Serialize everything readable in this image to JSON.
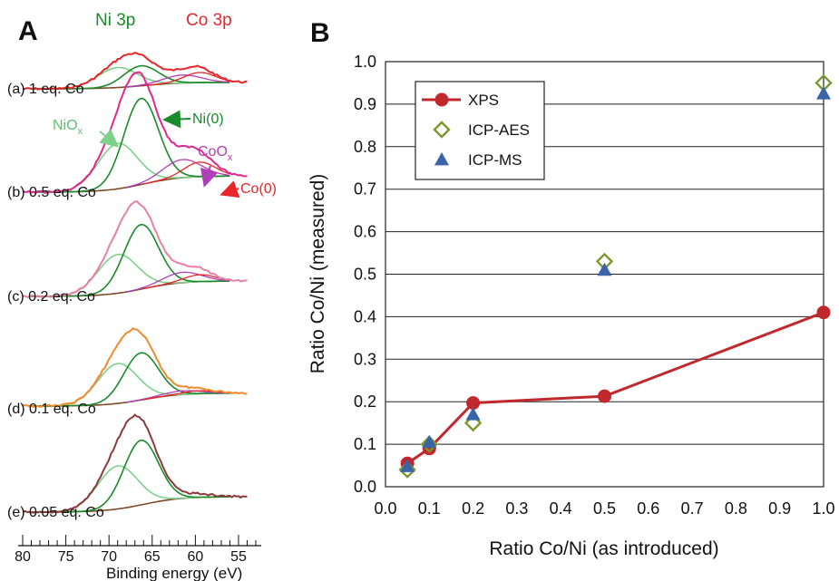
{
  "panel_a": {
    "letter": "A",
    "header_ni": "Ni 3p",
    "header_co": "Co 3p",
    "spectra": [
      {
        "label": "(a) 1 eq. Co",
        "color": "#e8262a"
      },
      {
        "label": "(b) 0.5 eq. Co",
        "color": "#e0288f"
      },
      {
        "label": "(c) 0.2 eq. Co",
        "color": "#e77fa6"
      },
      {
        "label": "(d) 0.1 eq. Co",
        "color": "#f08a2b"
      },
      {
        "label": "(e) 0.05 eq. Co",
        "color": "#8a3a3a"
      }
    ],
    "annotations": {
      "niox": "NiO",
      "niox_sub": "x",
      "ni0": "Ni(0)",
      "coox": "CoO",
      "coox_sub": "x",
      "co0": "Co(0)"
    },
    "xaxis": {
      "title": "Binding energy (eV)",
      "ticks": [
        "80",
        "75",
        "70",
        "65",
        "60",
        "55"
      ]
    },
    "colors": {
      "ni_fit": "#1a8a2a",
      "ni_light": "#7ed08a",
      "co_fit": "#e8262a",
      "background": "#7b4a2a",
      "coox_arrow": "#b040b8"
    }
  },
  "panel_b": {
    "letter": "B"
  },
  "chart_data": {
    "type": "scatter",
    "xlabel": "Ratio Co/Ni (as introduced)",
    "ylabel": "Ratio Co/Ni  (measured)",
    "xlim": [
      0.0,
      1.0
    ],
    "ylim": [
      0.0,
      1.0
    ],
    "xticks": [
      "0.0",
      "0.1",
      "0.2",
      "0.3",
      "0.4",
      "0.5",
      "0.6",
      "0.7",
      "0.8",
      "0.9",
      "1.0"
    ],
    "yticks": [
      "0.0",
      "0.1",
      "0.2",
      "0.3",
      "0.4",
      "0.5",
      "0.6",
      "0.7",
      "0.8",
      "0.9",
      "1.0"
    ],
    "grid": "horizontal",
    "legend_position": "top-left",
    "series": [
      {
        "name": "XPS",
        "marker": "circle-line",
        "color": "#c0282d",
        "x": [
          0.05,
          0.1,
          0.2,
          0.5,
          1.0
        ],
        "y": [
          0.055,
          0.09,
          0.197,
          0.213,
          0.41
        ]
      },
      {
        "name": "ICP-AES",
        "marker": "open-diamond",
        "color": "#7a9a2e",
        "x": [
          0.05,
          0.1,
          0.2,
          0.5,
          1.0
        ],
        "y": [
          0.04,
          0.1,
          0.15,
          0.53,
          0.95
        ]
      },
      {
        "name": "ICP-MS",
        "marker": "triangle",
        "color": "#3a64a8",
        "x": [
          0.05,
          0.1,
          0.2,
          0.5,
          1.0
        ],
        "y": [
          0.048,
          0.105,
          0.17,
          0.51,
          0.925
        ]
      }
    ]
  }
}
